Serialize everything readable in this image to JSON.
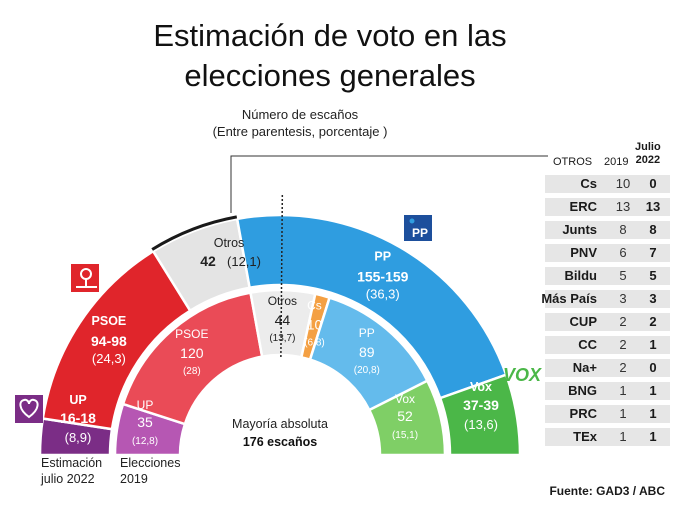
{
  "header": {
    "title_line1": "Estimación de voto en las",
    "title_line2": "elecciones generales",
    "subtitle_line1": "Número de escaños",
    "subtitle_line2": "(Entre parentesis, porcentaje )"
  },
  "chart_data": {
    "type": "parliament-semicircle",
    "total_seats": 350,
    "outer_ring": {
      "label_line1": "Estimación",
      "label_line2": "julio 2022",
      "segments": [
        {
          "party": "UP",
          "seats": "16-18",
          "pct": "(8,9)",
          "seats_mid": 17,
          "color": "#7b2d86"
        },
        {
          "party": "PSOE",
          "seats": "94-98",
          "pct": "(24,3)",
          "seats_mid": 96,
          "color": "#e0252b"
        },
        {
          "party": "Otros",
          "seats": "42",
          "pct": "(12,1)",
          "seats_mid": 42,
          "color": "#e4e4e4"
        },
        {
          "party": "PP",
          "seats": "155-159",
          "pct": "(36,3)",
          "seats_mid": 157,
          "color": "#2f9de0"
        },
        {
          "party": "Vox",
          "seats": "37-39",
          "pct": "(13,6)",
          "seats_mid": 38,
          "color": "#4bb748"
        }
      ]
    },
    "inner_ring": {
      "label_line1": "Elecciones",
      "label_line2": "2019",
      "segments": [
        {
          "party": "UP",
          "seats": "35",
          "pct": "(12,8)",
          "seats_mid": 35,
          "color": "#b657b3"
        },
        {
          "party": "PSOE",
          "seats": "120",
          "pct": "(28)",
          "seats_mid": 120,
          "color": "#ea4b57"
        },
        {
          "party": "Otros",
          "seats": "44",
          "pct": "(13,7)",
          "seats_mid": 44,
          "color": "#ececec"
        },
        {
          "party": "Cs",
          "seats": "10",
          "pct": "(6,8)",
          "seats_mid": 10,
          "color": "#f4a043"
        },
        {
          "party": "PP",
          "seats": "89",
          "pct": "(20,8)",
          "seats_mid": 89,
          "color": "#64bbec"
        },
        {
          "party": "Vox",
          "seats": "52",
          "pct": "(15,1)",
          "seats_mid": 52,
          "color": "#7fcf66"
        }
      ]
    },
    "majority": {
      "label": "Mayoría absoluta",
      "seats_label": "176 escaños",
      "seats": 176
    }
  },
  "logos": {
    "pp": "PP",
    "vox": "VOX"
  },
  "otros_table": {
    "header_otros": "OTROS",
    "header_2019": "2019",
    "header_julio_line1": "Julio",
    "header_julio_line2": "2022",
    "rows": [
      {
        "name": "Cs",
        "y2019": "10",
        "y2022": "0"
      },
      {
        "name": "ERC",
        "y2019": "13",
        "y2022": "13"
      },
      {
        "name": "Junts",
        "y2019": "8",
        "y2022": "8"
      },
      {
        "name": "PNV",
        "y2019": "6",
        "y2022": "7"
      },
      {
        "name": "Bildu",
        "y2019": "5",
        "y2022": "5"
      },
      {
        "name": "Más País",
        "y2019": "3",
        "y2022": "3"
      },
      {
        "name": "CUP",
        "y2019": "2",
        "y2022": "2"
      },
      {
        "name": "CC",
        "y2019": "2",
        "y2022": "1"
      },
      {
        "name": "Na+",
        "y2019": "2",
        "y2022": "0"
      },
      {
        "name": "BNG",
        "y2019": "1",
        "y2022": "1"
      },
      {
        "name": "PRC",
        "y2019": "1",
        "y2022": "1"
      },
      {
        "name": "TEx",
        "y2019": "1",
        "y2022": "1"
      }
    ]
  },
  "source": "Fuente: GAD3 / ABC"
}
